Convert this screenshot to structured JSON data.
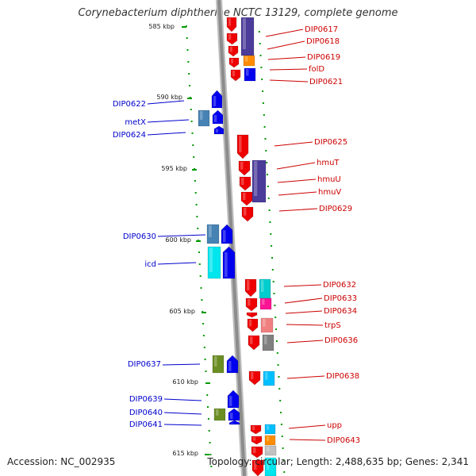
{
  "title": "Corynebacterium diphtheriae NCTC 13129, complete genome",
  "footer": {
    "accession": "Accession: NC_002935",
    "topology": "Topology: circular; Length: 2,488,635 bp; Genes: 2,341"
  },
  "colors": {
    "forward_strand": "#0000ee",
    "reverse_strand": "#ee0000",
    "tick": "#009900",
    "backbone": "#8c8c8c",
    "label_left": "#0000cc",
    "label_right": "#cc0000"
  },
  "scale_marks": [
    {
      "label": "585 kbp"
    },
    {
      "label": "590 kbp"
    },
    {
      "label": "595 kbp"
    },
    {
      "label": "600 kbp"
    },
    {
      "label": "605 kbp"
    },
    {
      "label": "610 kbp"
    },
    {
      "label": "615 kbp"
    }
  ],
  "genes_left": [
    {
      "name": "DIP0622"
    },
    {
      "name": "metX"
    },
    {
      "name": "DIP0624"
    },
    {
      "name": "DIP0630"
    },
    {
      "name": "icd"
    },
    {
      "name": "DIP0637"
    },
    {
      "name": "DIP0639"
    },
    {
      "name": "DIP0640"
    },
    {
      "name": "DIP0641"
    }
  ],
  "genes_right": [
    {
      "name": "DIP0617"
    },
    {
      "name": "DIP0618"
    },
    {
      "name": "DIP0619"
    },
    {
      "name": "folD"
    },
    {
      "name": "DIP0621"
    },
    {
      "name": "DIP0625"
    },
    {
      "name": "hmuT"
    },
    {
      "name": "hmuU"
    },
    {
      "name": "hmuV"
    },
    {
      "name": "DIP0629"
    },
    {
      "name": "DIP0632"
    },
    {
      "name": "DIP0633"
    },
    {
      "name": "DIP0634"
    },
    {
      "name": "trpS"
    },
    {
      "name": "DIP0636"
    },
    {
      "name": "DIP0638"
    },
    {
      "name": "upp"
    },
    {
      "name": "DIP0643"
    }
  ]
}
